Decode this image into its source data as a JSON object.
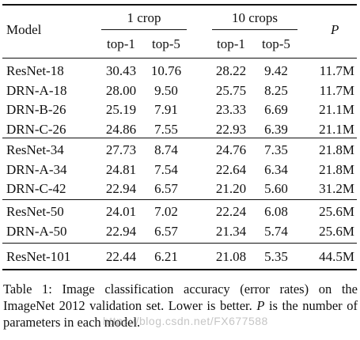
{
  "table": {
    "header": {
      "model": "Model",
      "group1": "1 crop",
      "group2": "10 crops",
      "sub1": "top-1",
      "sub2": "top-5",
      "sub3": "top-1",
      "sub4": "top-5",
      "param": "P"
    },
    "groups": [
      {
        "rows": [
          {
            "model": "ResNet-18",
            "c1_top1": "30.43",
            "c1_top5": "10.76",
            "c10_top1": "28.22",
            "c10_top5": "9.42",
            "params": "11.7M"
          },
          {
            "model": "DRN-A-18",
            "c1_top1": "28.00",
            "c1_top5": "9.50",
            "c10_top1": "25.75",
            "c10_top5": "8.25",
            "params": "11.7M"
          },
          {
            "model": "DRN-B-26",
            "c1_top1": "25.19",
            "c1_top5": "7.91",
            "c10_top1": "23.33",
            "c10_top5": "6.69",
            "params": "21.1M"
          },
          {
            "model": "DRN-C-26",
            "c1_top1": "24.86",
            "c1_top5": "7.55",
            "c10_top1": "22.93",
            "c10_top5": "6.39",
            "params": "21.1M"
          }
        ]
      },
      {
        "rows": [
          {
            "model": "ResNet-34",
            "c1_top1": "27.73",
            "c1_top5": "8.74",
            "c10_top1": "24.76",
            "c10_top5": "7.35",
            "params": "21.8M"
          },
          {
            "model": "DRN-A-34",
            "c1_top1": "24.81",
            "c1_top5": "7.54",
            "c10_top1": "22.64",
            "c10_top5": "6.34",
            "params": "21.8M"
          },
          {
            "model": "DRN-C-42",
            "c1_top1": "22.94",
            "c1_top5": "6.57",
            "c10_top1": "21.20",
            "c10_top5": "5.60",
            "params": "31.2M"
          }
        ]
      },
      {
        "rows": [
          {
            "model": "ResNet-50",
            "c1_top1": "24.01",
            "c1_top5": "7.02",
            "c10_top1": "22.24",
            "c10_top5": "6.08",
            "params": "25.6M"
          },
          {
            "model": "DRN-A-50",
            "c1_top1": "22.94",
            "c1_top5": "6.57",
            "c10_top1": "21.34",
            "c10_top5": "5.74",
            "params": "25.6M"
          }
        ]
      },
      {
        "rows": [
          {
            "model": "ResNet-101",
            "c1_top1": "22.44",
            "c1_top5": "6.21",
            "c10_top1": "21.08",
            "c10_top5": "5.35",
            "params": "44.5M"
          }
        ]
      }
    ]
  },
  "caption": {
    "text": "Table 1: Image classification accuracy (error rates) on the ImageNet 2012 validation set. Lower is better. P is the number of parameters in each model."
  },
  "watermark": {
    "text": "https://blog.csdn.net/FX677588"
  }
}
